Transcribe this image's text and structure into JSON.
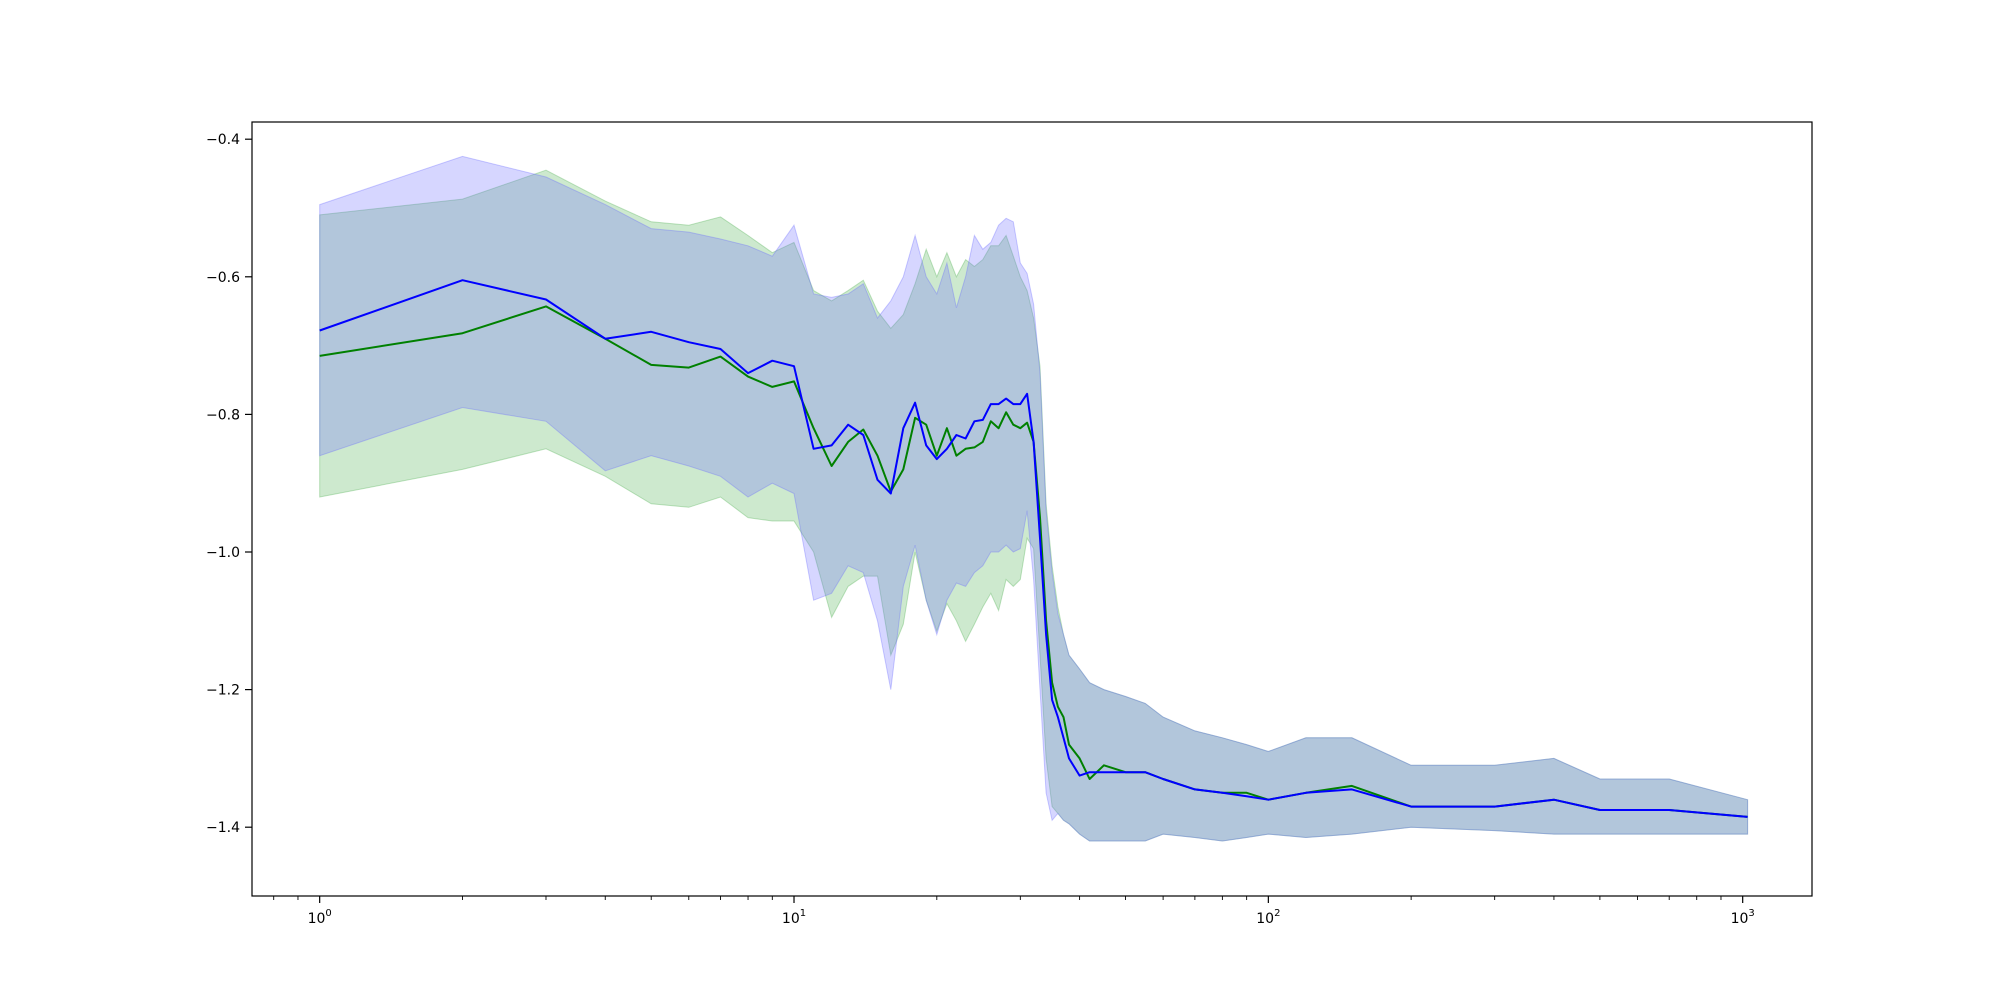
{
  "chart_data": {
    "type": "line",
    "title": "",
    "xlabel": "",
    "ylabel": "",
    "x_scale": "log",
    "xlim": [
      0.72,
      1400
    ],
    "ylim": [
      -1.5,
      -0.375
    ],
    "grid": false,
    "x_ticks": [
      {
        "value": 1,
        "base": "10",
        "exp": "0"
      },
      {
        "value": 10,
        "base": "10",
        "exp": "1"
      },
      {
        "value": 100,
        "base": "10",
        "exp": "2"
      },
      {
        "value": 1000,
        "base": "10",
        "exp": "3"
      }
    ],
    "y_ticks": [
      {
        "value": -0.4,
        "label": "−0.4"
      },
      {
        "value": -0.6,
        "label": "−0.6"
      },
      {
        "value": -0.8,
        "label": "−0.8"
      },
      {
        "value": -1.0,
        "label": "−1.0"
      },
      {
        "value": -1.2,
        "label": "−1.2"
      },
      {
        "value": -1.4,
        "label": "−1.4"
      }
    ],
    "series": [
      {
        "color": "#008000",
        "band_color": "#4caf50",
        "x": [
          1,
          2,
          3,
          4,
          5,
          6,
          7,
          8,
          9,
          10,
          11,
          12,
          13,
          14,
          15,
          16,
          17,
          18,
          19,
          20,
          21,
          22,
          23,
          24,
          25,
          26,
          27,
          28,
          29,
          30,
          31,
          32,
          33,
          34,
          35,
          36,
          37,
          38,
          40,
          42,
          45,
          50,
          55,
          60,
          70,
          80,
          90,
          100,
          120,
          150,
          200,
          300,
          400,
          500,
          700,
          1024
        ],
        "mean": [
          -0.715,
          -0.682,
          -0.643,
          -0.69,
          -0.728,
          -0.732,
          -0.716,
          -0.745,
          -0.76,
          -0.752,
          -0.82,
          -0.875,
          -0.84,
          -0.822,
          -0.86,
          -0.912,
          -0.88,
          -0.805,
          -0.815,
          -0.86,
          -0.82,
          -0.86,
          -0.85,
          -0.848,
          -0.84,
          -0.81,
          -0.82,
          -0.797,
          -0.815,
          -0.82,
          -0.812,
          -0.84,
          -0.95,
          -1.1,
          -1.19,
          -1.225,
          -1.24,
          -1.28,
          -1.3,
          -1.33,
          -1.31,
          -1.32,
          -1.32,
          -1.33,
          -1.345,
          -1.35,
          -1.35,
          -1.36,
          -1.35,
          -1.34,
          -1.37,
          -1.37,
          -1.36,
          -1.375,
          -1.375,
          -1.385
        ],
        "lower": [
          -0.92,
          -0.88,
          -0.85,
          -0.89,
          -0.93,
          -0.935,
          -0.92,
          -0.95,
          -0.955,
          -0.955,
          -1.0,
          -1.095,
          -1.05,
          -1.035,
          -1.035,
          -1.15,
          -1.105,
          -1.0,
          -1.07,
          -1.115,
          -1.075,
          -1.1,
          -1.13,
          -1.105,
          -1.08,
          -1.06,
          -1.085,
          -1.04,
          -1.05,
          -1.04,
          -0.98,
          -0.995,
          -1.15,
          -1.3,
          -1.37,
          -1.38,
          -1.39,
          -1.395,
          -1.41,
          -1.42,
          -1.42,
          -1.42,
          -1.42,
          -1.41,
          -1.415,
          -1.42,
          -1.415,
          -1.41,
          -1.415,
          -1.41,
          -1.4,
          -1.405,
          -1.41,
          -1.41,
          -1.41,
          -1.41
        ],
        "upper": [
          -0.51,
          -0.487,
          -0.445,
          -0.49,
          -0.52,
          -0.525,
          -0.513,
          -0.54,
          -0.565,
          -0.55,
          -0.62,
          -0.635,
          -0.62,
          -0.605,
          -0.65,
          -0.675,
          -0.655,
          -0.61,
          -0.56,
          -0.6,
          -0.565,
          -0.6,
          -0.575,
          -0.585,
          -0.575,
          -0.555,
          -0.555,
          -0.54,
          -0.57,
          -0.6,
          -0.62,
          -0.66,
          -0.73,
          -0.93,
          -1.02,
          -1.08,
          -1.12,
          -1.15,
          -1.17,
          -1.19,
          -1.2,
          -1.21,
          -1.22,
          -1.24,
          -1.26,
          -1.27,
          -1.28,
          -1.29,
          -1.27,
          -1.27,
          -1.31,
          -1.31,
          -1.3,
          -1.33,
          -1.33,
          -1.36
        ]
      },
      {
        "color": "#0000ff",
        "band_color": "#6b6bff",
        "x": [
          1,
          2,
          3,
          4,
          5,
          6,
          7,
          8,
          9,
          10,
          11,
          12,
          13,
          14,
          15,
          16,
          17,
          18,
          19,
          20,
          21,
          22,
          23,
          24,
          25,
          26,
          27,
          28,
          29,
          30,
          31,
          32,
          33,
          34,
          35,
          36,
          37,
          38,
          40,
          42,
          45,
          50,
          55,
          60,
          70,
          80,
          90,
          100,
          120,
          150,
          200,
          300,
          400,
          500,
          700,
          1024
        ],
        "mean": [
          -0.678,
          -0.605,
          -0.633,
          -0.69,
          -0.68,
          -0.695,
          -0.705,
          -0.74,
          -0.722,
          -0.73,
          -0.85,
          -0.845,
          -0.815,
          -0.83,
          -0.895,
          -0.915,
          -0.82,
          -0.783,
          -0.845,
          -0.865,
          -0.85,
          -0.83,
          -0.835,
          -0.81,
          -0.808,
          -0.785,
          -0.785,
          -0.777,
          -0.785,
          -0.785,
          -0.77,
          -0.84,
          -0.98,
          -1.12,
          -1.215,
          -1.24,
          -1.27,
          -1.3,
          -1.325,
          -1.32,
          -1.32,
          -1.32,
          -1.32,
          -1.33,
          -1.345,
          -1.35,
          -1.355,
          -1.36,
          -1.35,
          -1.345,
          -1.37,
          -1.37,
          -1.36,
          -1.375,
          -1.375,
          -1.385
        ],
        "lower": [
          -0.86,
          -0.79,
          -0.81,
          -0.882,
          -0.86,
          -0.875,
          -0.89,
          -0.92,
          -0.9,
          -0.915,
          -1.07,
          -1.06,
          -1.02,
          -1.03,
          -1.1,
          -1.2,
          -1.05,
          -0.99,
          -1.07,
          -1.12,
          -1.07,
          -1.045,
          -1.05,
          -1.03,
          -1.02,
          -1.0,
          -1.0,
          -0.99,
          -1.0,
          -0.995,
          -0.94,
          -1.04,
          -1.2,
          -1.35,
          -1.39,
          -1.38,
          -1.39,
          -1.395,
          -1.41,
          -1.42,
          -1.42,
          -1.42,
          -1.42,
          -1.41,
          -1.415,
          -1.42,
          -1.415,
          -1.41,
          -1.415,
          -1.41,
          -1.4,
          -1.405,
          -1.41,
          -1.41,
          -1.41,
          -1.41
        ],
        "upper": [
          -0.495,
          -0.425,
          -0.455,
          -0.495,
          -0.53,
          -0.535,
          -0.545,
          -0.555,
          -0.57,
          -0.525,
          -0.625,
          -0.63,
          -0.625,
          -0.61,
          -0.66,
          -0.635,
          -0.6,
          -0.54,
          -0.6,
          -0.625,
          -0.58,
          -0.645,
          -0.6,
          -0.54,
          -0.56,
          -0.55,
          -0.525,
          -0.515,
          -0.52,
          -0.58,
          -0.595,
          -0.64,
          -0.74,
          -0.94,
          -1.03,
          -1.09,
          -1.12,
          -1.15,
          -1.17,
          -1.19,
          -1.2,
          -1.21,
          -1.22,
          -1.24,
          -1.26,
          -1.27,
          -1.28,
          -1.29,
          -1.27,
          -1.27,
          -1.31,
          -1.31,
          -1.3,
          -1.33,
          -1.33,
          -1.36
        ]
      }
    ]
  }
}
